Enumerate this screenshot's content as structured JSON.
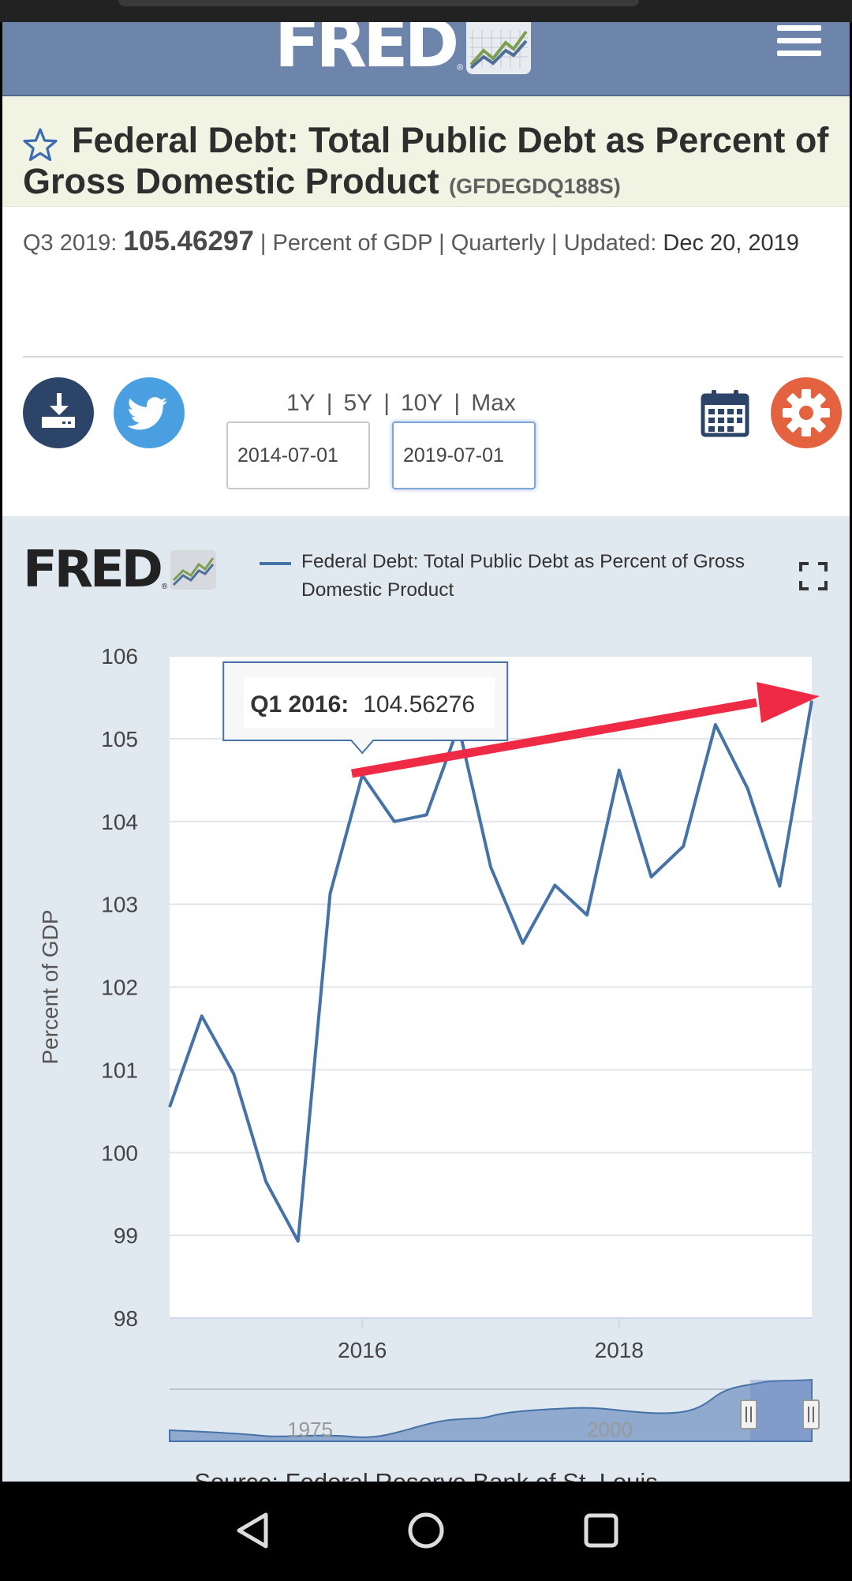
{
  "header": {
    "logo_text": "FRED",
    "logo_reg": "®"
  },
  "series": {
    "title": "Federal Debt: Total Public Debt as Percent of Gross Domestic Product",
    "id": "(GFDEGDQ188S)"
  },
  "meta": {
    "period": "Q3 2019:",
    "value": "105.46297",
    "units_freq": "| Percent of GDP | Quarterly | Updated:",
    "updated": "Dec 20, 2019"
  },
  "toolbar": {
    "ranges": [
      "1Y",
      "5Y",
      "10Y",
      "Max"
    ],
    "start_date": "2014-07-01",
    "end_date": "2019-07-01"
  },
  "colors": {
    "header": "#6d84ab",
    "series_line": "#4572a7",
    "annotation_arrow": "#ee2a45",
    "settings": "#e4623f",
    "twitter": "#4a9fe1"
  },
  "chart_data": {
    "type": "line",
    "legend": "Federal Debt: Total Public Debt as Percent of Gross Domestic Product",
    "ylabel": "Percent of GDP",
    "ylim": [
      98,
      106
    ],
    "yticks": [
      "98",
      "99",
      "100",
      "101",
      "102",
      "103",
      "104",
      "105",
      "106"
    ],
    "xticks": [
      "2016",
      "2018"
    ],
    "navigator_labels": [
      "1975",
      "2000"
    ],
    "grid": true,
    "tooltip": {
      "label": "Q1 2016:",
      "value": "104.56276"
    },
    "series": [
      {
        "name": "Federal Debt: Total Public Debt as Percent of Gross Domestic Product",
        "x": [
          "2014-07-01",
          "2014-10-01",
          "2015-01-01",
          "2015-04-01",
          "2015-07-01",
          "2015-10-01",
          "2016-01-01",
          "2016-04-01",
          "2016-07-01",
          "2016-10-01",
          "2017-01-01",
          "2017-04-01",
          "2017-07-01",
          "2017-10-01",
          "2018-01-01",
          "2018-04-01",
          "2018-07-01",
          "2018-10-01",
          "2019-01-01",
          "2019-04-01",
          "2019-07-01"
        ],
        "values": [
          100.55,
          101.65,
          100.95,
          99.65,
          98.93,
          103.13,
          104.56,
          104.0,
          104.08,
          105.15,
          103.45,
          102.53,
          103.23,
          102.87,
          104.62,
          103.33,
          103.7,
          105.17,
          104.4,
          103.22,
          105.46
        ]
      }
    ]
  },
  "source": "Source: Federal Reserve Bank of St. Louis"
}
